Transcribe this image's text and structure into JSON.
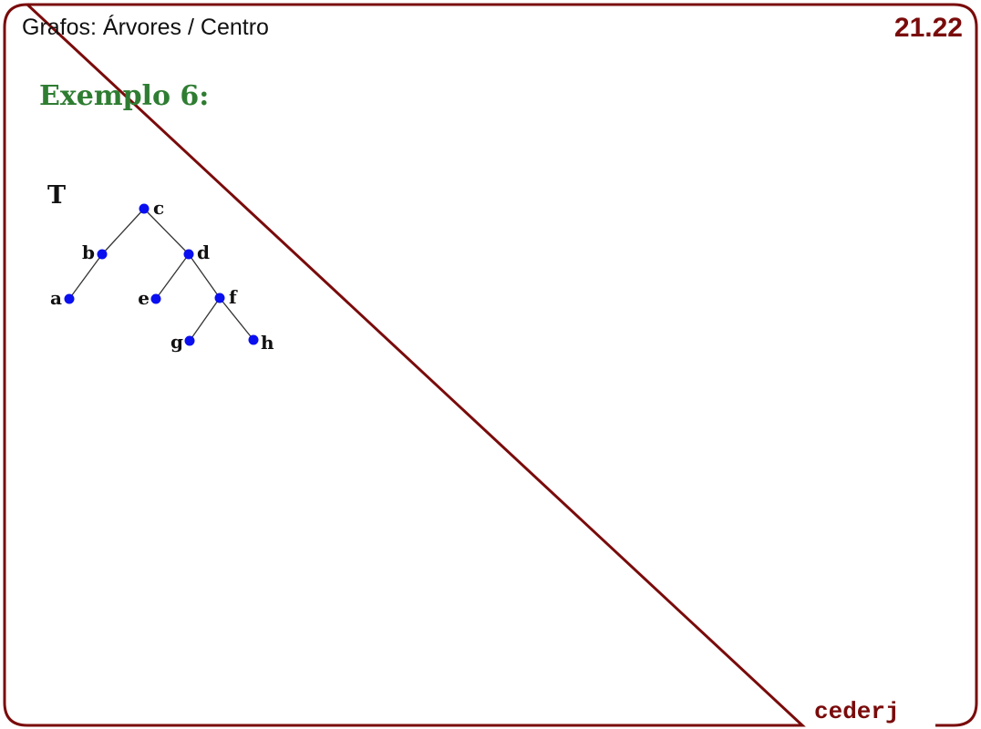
{
  "header": {
    "title": "Grafos: Árvores / Centro",
    "slide_number": "21.22"
  },
  "content": {
    "heading": "Exemplo 6:"
  },
  "diagram": {
    "tree_name": "T",
    "nodes": [
      "c",
      "b",
      "d",
      "a",
      "e",
      "f",
      "g",
      "h"
    ],
    "edges": [
      [
        "c",
        "b"
      ],
      [
        "c",
        "d"
      ],
      [
        "b",
        "a"
      ],
      [
        "d",
        "e"
      ],
      [
        "d",
        "f"
      ],
      [
        "f",
        "g"
      ],
      [
        "f",
        "h"
      ]
    ],
    "node_color": "#0a0ff0",
    "edge_color": "#333333"
  },
  "footer": {
    "brand": "cederj"
  },
  "colors": {
    "frame": "#7a0b0b",
    "heading": "#2e7d32"
  }
}
